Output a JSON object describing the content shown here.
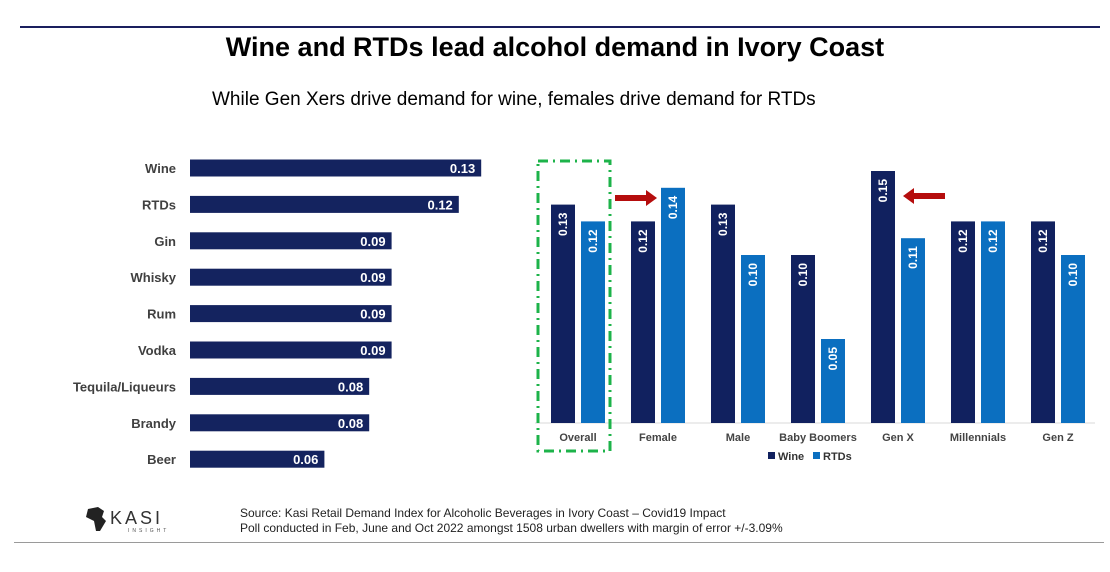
{
  "header": {
    "title": "Wine and RTDs lead alcohol demand in Ivory Coast",
    "subtitle": "While Gen Xers drive demand for wine, females drive demand for RTDs"
  },
  "footer": {
    "source_line1": "Source: Kasi Retail Demand Index for Alcoholic Beverages  in Ivory Coast – Covid19 Impact",
    "source_line2": "Poll conducted in Feb, June and Oct 2022 amongst 1508  urban dwellers with margin of error +/-3.09%",
    "logo_text": "KASI",
    "logo_subtext": "INSIGHT"
  },
  "colors": {
    "wine": "#11215f",
    "rtds": "#0b6fc0",
    "highlight_box": "#1db34a",
    "arrow": "#b50d0d",
    "left_bars": "#14235f"
  },
  "chart_data": [
    {
      "type": "bar",
      "orientation": "horizontal",
      "categories": [
        "Wine",
        "RTDs",
        "Gin",
        "Whisky",
        "Rum",
        "Vodka",
        "Tequila/Liqueurs",
        "Brandy",
        "Beer"
      ],
      "values": [
        0.13,
        0.12,
        0.09,
        0.09,
        0.09,
        0.09,
        0.08,
        0.08,
        0.06
      ],
      "data_labels": [
        "0.13",
        "0.12",
        "0.09",
        "0.09",
        "0.09",
        "0.09",
        "0.08",
        "0.08",
        "0.06"
      ],
      "grid": false
    },
    {
      "type": "bar",
      "orientation": "vertical",
      "categories": [
        "Overall",
        "Female",
        "Male",
        "Baby Boomers",
        "Gen X",
        "Millennials",
        "Gen Z"
      ],
      "series": [
        {
          "name": "Wine",
          "values": [
            0.13,
            0.12,
            0.13,
            0.1,
            0.15,
            0.12,
            0.12
          ],
          "data_labels": [
            "0.13",
            "0.12",
            "0.13",
            "0.10",
            "0.15",
            "0.12",
            "0.12"
          ]
        },
        {
          "name": "RTDs",
          "values": [
            0.12,
            0.14,
            0.1,
            0.05,
            0.11,
            0.12,
            0.1
          ],
          "data_labels": [
            "0.12",
            "0.14",
            "0.10",
            "0.05",
            "0.11",
            "0.12",
            "0.10"
          ]
        }
      ],
      "legend": "bottom",
      "highlighted_category": "Overall",
      "arrows_point_to": [
        "Female RTDs",
        "Gen X Wine"
      ],
      "grid": false
    }
  ]
}
